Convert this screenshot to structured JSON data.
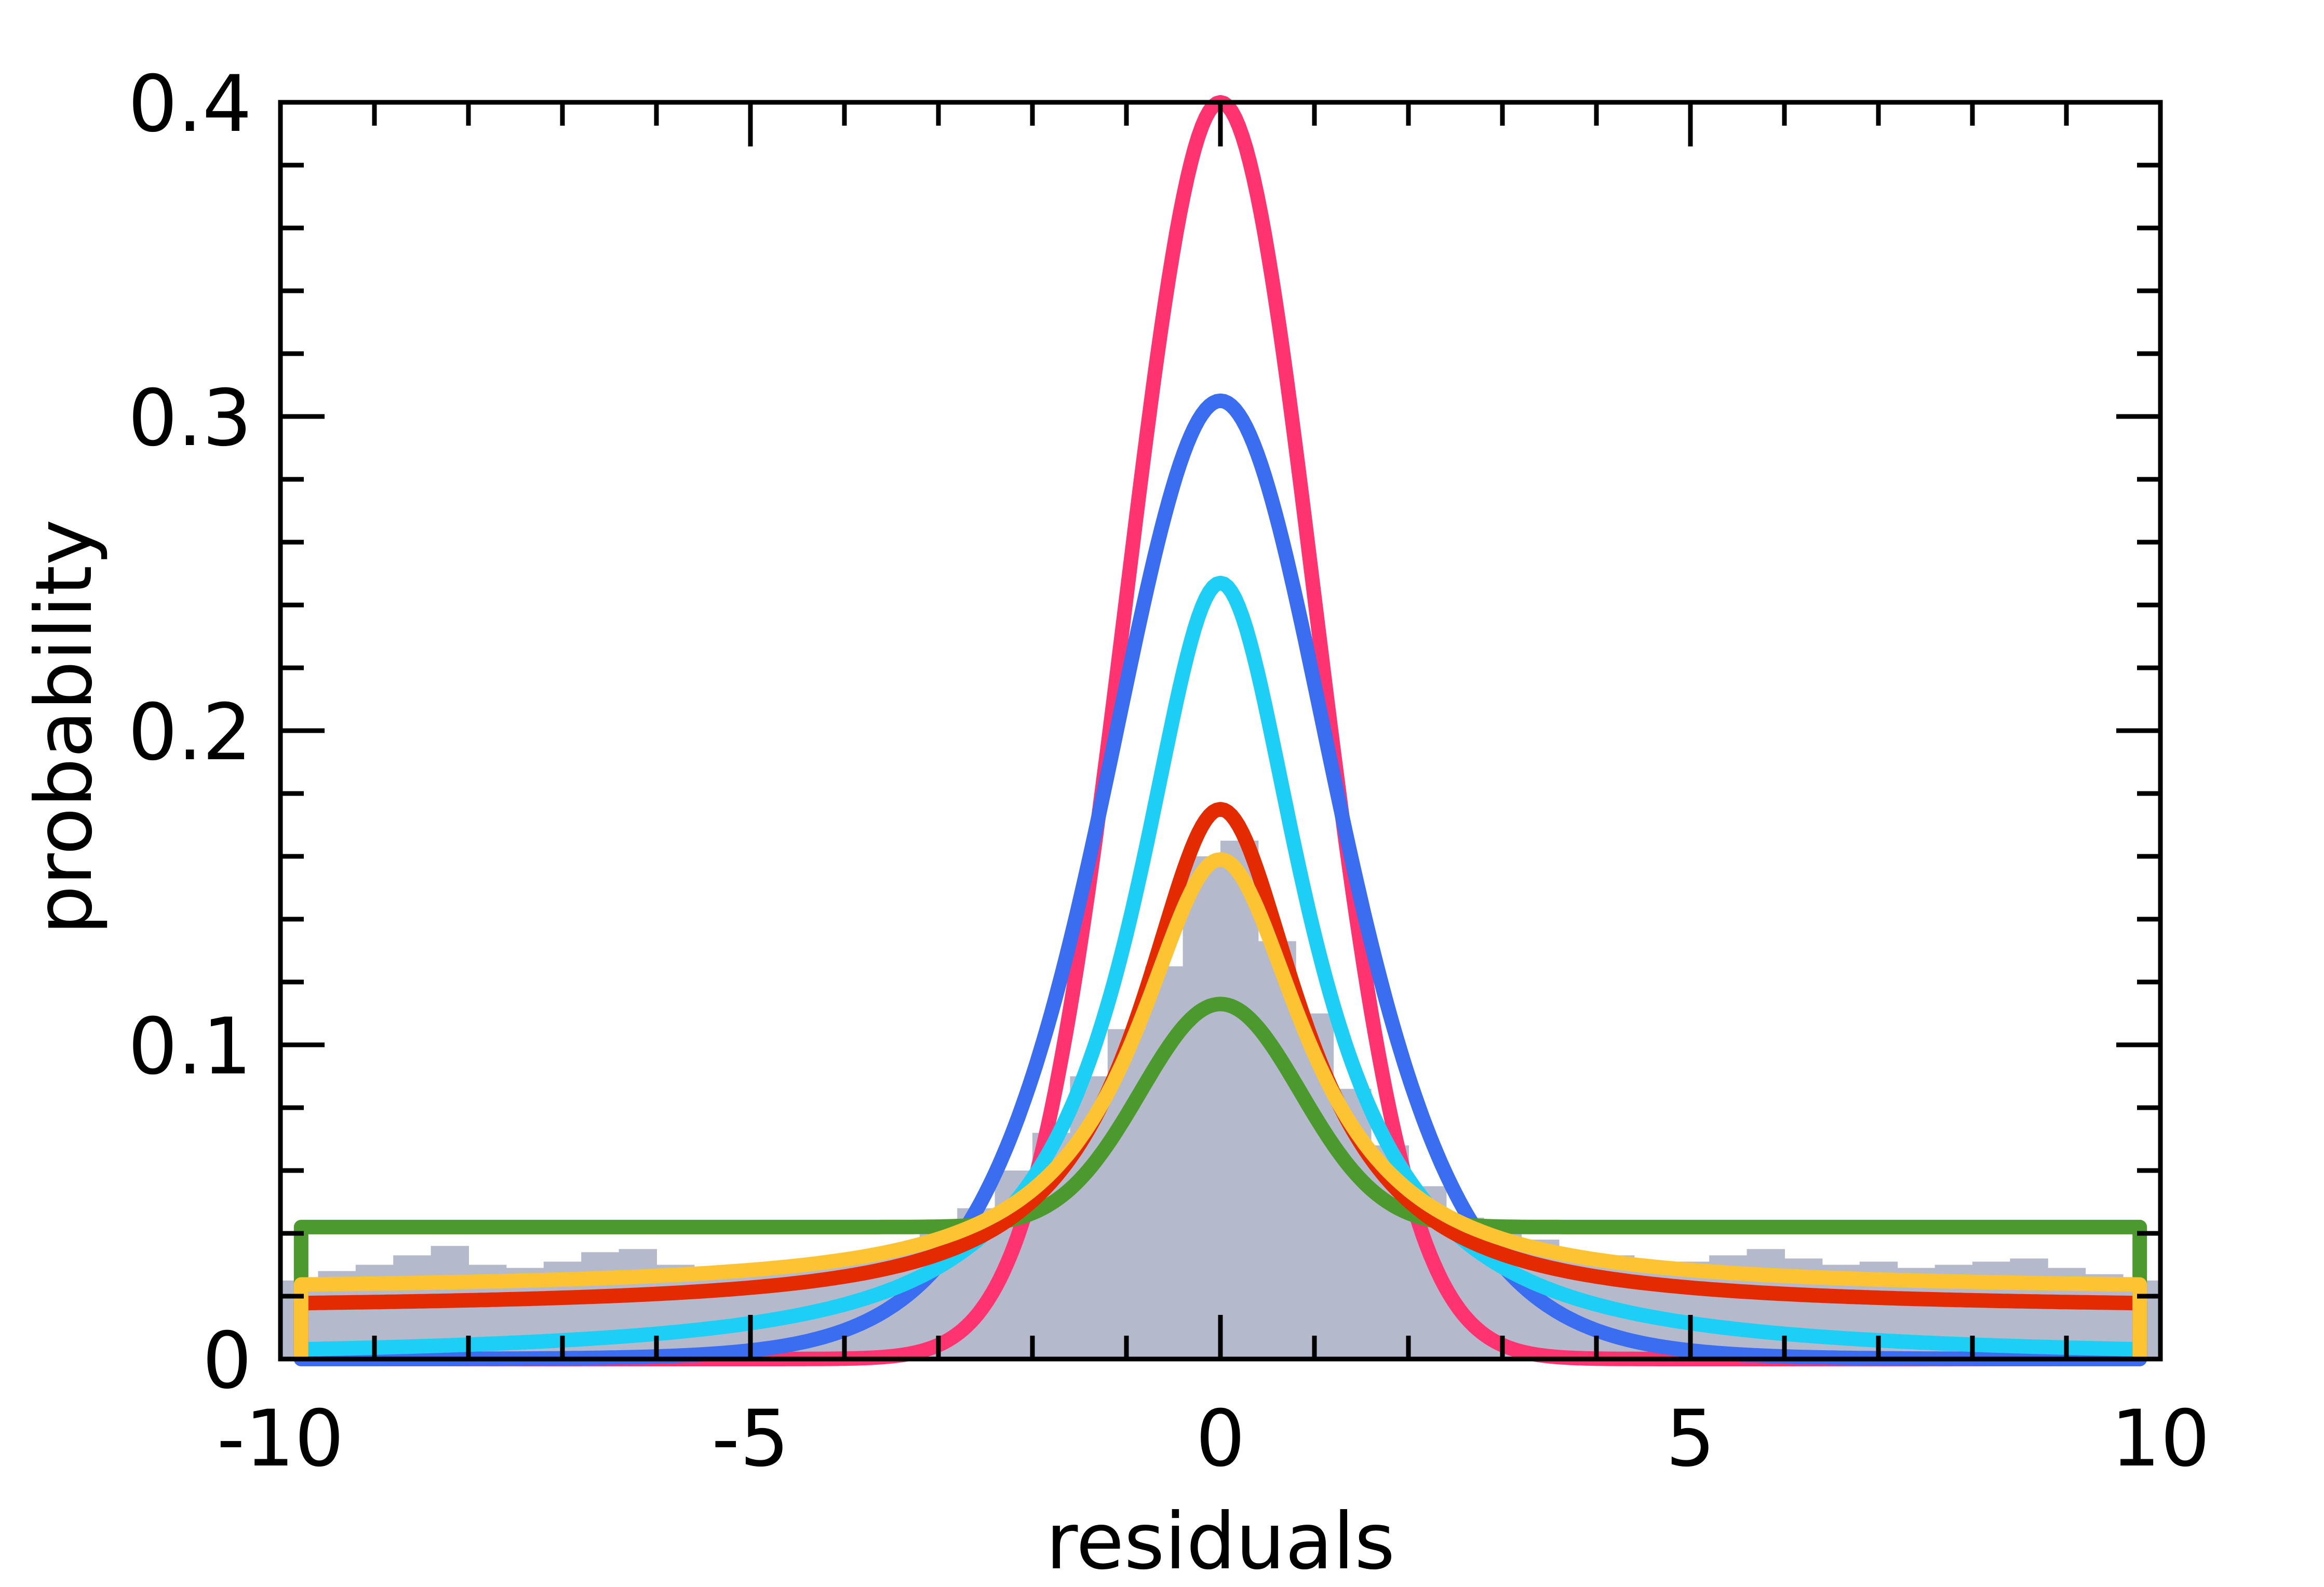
{
  "chart_data": {
    "type": "line",
    "xlabel": "residuals",
    "ylabel": "probability",
    "xlim": [
      -10,
      10
    ],
    "ylim": [
      0,
      0.4
    ],
    "x_ticks": [
      "-10",
      "-5",
      "0",
      "5",
      "10"
    ],
    "y_ticks": [
      "0",
      "0.1",
      "0.2",
      "0.3",
      "0.4"
    ],
    "grid": false,
    "legend": "none",
    "histogram": {
      "color": "#b4bacc",
      "bin_width": 0.4,
      "x": [
        -9.8,
        -9.4,
        -9.0,
        -8.6,
        -8.2,
        -7.8,
        -7.4,
        -7.0,
        -6.6,
        -6.2,
        -5.8,
        -5.4,
        -5.0,
        -4.6,
        -4.2,
        -3.8,
        -3.4,
        -3.0,
        -2.6,
        -2.2,
        -1.8,
        -1.4,
        -1.0,
        -0.6,
        -0.2,
        0.2,
        0.6,
        1.0,
        1.4,
        1.8,
        2.2,
        2.6,
        3.0,
        3.4,
        3.8,
        4.2,
        4.6,
        5.0,
        5.4,
        5.8,
        6.2,
        6.6,
        7.0,
        7.4,
        7.8,
        8.2,
        8.6,
        9.0,
        9.4,
        9.8
      ],
      "values": [
        0.025,
        0.028,
        0.03,
        0.033,
        0.036,
        0.03,
        0.029,
        0.031,
        0.034,
        0.035,
        0.03,
        0.029,
        0.028,
        0.031,
        0.03,
        0.032,
        0.035,
        0.04,
        0.048,
        0.06,
        0.072,
        0.09,
        0.105,
        0.125,
        0.16,
        0.165,
        0.133,
        0.11,
        0.086,
        0.068,
        0.055,
        0.045,
        0.04,
        0.038,
        0.034,
        0.033,
        0.03,
        0.031,
        0.033,
        0.035,
        0.032,
        0.03,
        0.031,
        0.029,
        0.03,
        0.031,
        0.032,
        0.029,
        0.027,
        0.025
      ]
    },
    "series": [
      {
        "color": "#ff3370",
        "model": "gaussian",
        "peak": 0.4,
        "sigma": 1.0,
        "floor": 0
      },
      {
        "color": "#3a6df0",
        "model": "logistic",
        "peak": 0.305,
        "scale": 0.82,
        "floor": 0
      },
      {
        "color": "#1ecff5",
        "model": "cauchy",
        "peak": 0.247,
        "gamma": 1.1,
        "floor": 0
      },
      {
        "color": "#4c9a2e",
        "model": "gaussian",
        "peak": 0.113,
        "sigma": 0.85,
        "floor": 0.042
      },
      {
        "color": "#e32a00",
        "model": "cauchy",
        "peak": 0.175,
        "gamma": 1.05,
        "floor": 0.016
      },
      {
        "color": "#fcc333",
        "model": "cauchy",
        "peak": 0.159,
        "gamma": 1.1,
        "floor": 0.022
      }
    ]
  }
}
